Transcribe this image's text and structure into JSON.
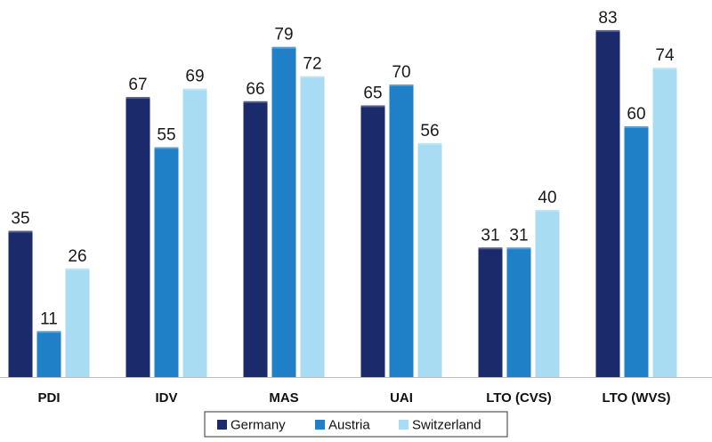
{
  "chart_data": {
    "type": "bar",
    "categories": [
      "PDI",
      "IDV",
      "MAS",
      "UAI",
      "LTO (CVS)",
      "LTO (WVS)"
    ],
    "series": [
      {
        "name": "Germany",
        "color": "#1b2a6b",
        "values": [
          35,
          67,
          66,
          65,
          31,
          83
        ]
      },
      {
        "name": "Austria",
        "color": "#1f80c8",
        "values": [
          11,
          55,
          79,
          70,
          31,
          60
        ]
      },
      {
        "name": "Switzerland",
        "color": "#a8dcf2",
        "values": [
          26,
          69,
          72,
          56,
          40,
          74
        ]
      }
    ],
    "title": "",
    "xlabel": "",
    "ylabel": "",
    "ylim": [
      0,
      90
    ],
    "grid": false,
    "data_labels": true,
    "legend_position": "bottom-center"
  }
}
